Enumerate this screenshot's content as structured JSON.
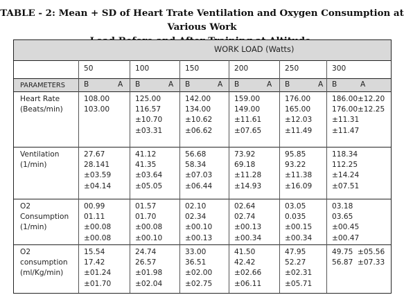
{
  "title": {
    "line1": "TABLE - 2: Mean + SD of Heart Trate Ventilation and Oxygen Consumption at Various Work",
    "line2": "Load Before and After Training at Altitude."
  },
  "table": {
    "group_header": "WORK LOAD (Watts)",
    "param_header": "PARAMETERS",
    "before_label": "B",
    "after_label": "A",
    "loads": [
      "50",
      "100",
      "150",
      "200",
      "250",
      "300"
    ],
    "rows": [
      {
        "label": [
          "Heart Rate",
          "(Beats/min)"
        ],
        "cells": [
          {
            "b": [
              "108.00",
              "103.00"
            ],
            "a": []
          },
          {
            "b": [
              "125.00",
              "116.57",
              "±10.70",
              "±03.31"
            ],
            "a": []
          },
          {
            "b": [
              "142.00",
              "134.00",
              "±10.62",
              "±06.62"
            ],
            "a": []
          },
          {
            "b": [
              "159.00",
              "149.00",
              "±11.61",
              "±07.65"
            ],
            "a": []
          },
          {
            "b": [
              "176.00",
              "165.00",
              "±12.03",
              "±11.49"
            ],
            "a": []
          },
          {
            "b": [
              "186.00",
              "176.00",
              "±11.31",
              "±11.47"
            ],
            "a": [
              "±12.20",
              "±12.25"
            ]
          }
        ]
      },
      {
        "label": [
          "Ventilation",
          "(1/min)"
        ],
        "cells": [
          {
            "b": [
              "27.67",
              "28.141",
              "±03.59",
              "±04.14"
            ],
            "a": []
          },
          {
            "b": [
              "41.12",
              "41.35",
              "±03.64",
              "±05.05"
            ],
            "a": []
          },
          {
            "b": [
              "56.68",
              "58.34",
              "±07.03",
              "±06.44"
            ],
            "a": []
          },
          {
            "b": [
              "73.92",
              "69.18",
              "±11.28",
              "±14.93"
            ],
            "a": []
          },
          {
            "b": [
              "95.85",
              "93.22",
              "±11.38",
              "±16.09"
            ],
            "a": []
          },
          {
            "b": [
              "118.34",
              "112.25",
              "±14.24",
              "±07.51"
            ],
            "a": []
          }
        ]
      },
      {
        "label": [
          "O2",
          "Consumption",
          "(1/min)"
        ],
        "cells": [
          {
            "b": [
              "00.99",
              "01.11",
              "±00.08",
              "±00.08"
            ],
            "a": []
          },
          {
            "b": [
              "01.57",
              "01.70",
              "±00.08",
              "±00.10"
            ],
            "a": []
          },
          {
            "b": [
              "02.10",
              "02.34",
              "±00.10",
              "±00.13"
            ],
            "a": []
          },
          {
            "b": [
              "02.64",
              "02.74",
              "±00.13",
              "±00.34"
            ],
            "a": []
          },
          {
            "b": [
              "03.05",
              "0.035",
              "±00.15",
              "±00.34"
            ],
            "a": []
          },
          {
            "b": [
              "03.18",
              "03.65",
              "±00.45",
              "±00.47"
            ],
            "a": []
          }
        ]
      },
      {
        "label": [
          "O2",
          "consumption",
          "(ml/Kg/min)"
        ],
        "cells": [
          {
            "b": [
              "15.54",
              "17.42",
              "±01.24",
              "±01.70"
            ],
            "a": []
          },
          {
            "b": [
              "24.74",
              "26.57",
              "±01.98",
              "±02.04"
            ],
            "a": []
          },
          {
            "b": [
              "33.00",
              "36.51",
              "±02.00",
              "±02.75"
            ],
            "a": []
          },
          {
            "b": [
              "41.50",
              "42.42",
              "±02.66",
              "±06.11"
            ],
            "a": []
          },
          {
            "b": [
              "47.95",
              "52.27",
              "±02.31",
              "±05.71"
            ],
            "a": []
          },
          {
            "b": [
              "49.75",
              "56.87"
            ],
            "a": [
              "±05.56",
              "±07.33"
            ]
          }
        ]
      }
    ]
  }
}
